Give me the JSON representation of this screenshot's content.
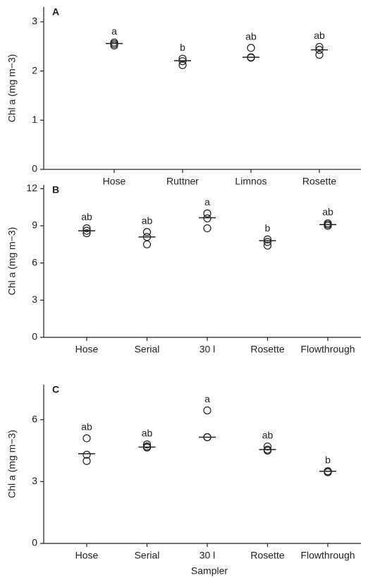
{
  "chart_data": [
    {
      "type": "dot",
      "panel_label": "A",
      "ylabel": "Chl a (mg m−3)",
      "categories": [
        "Hose",
        "Ruttner",
        "Limnos",
        "Rosette"
      ],
      "points": [
        [
          2.52,
          2.55,
          2.58
        ],
        [
          2.12,
          2.2,
          2.25
        ],
        [
          2.27,
          2.28,
          2.47
        ],
        [
          2.33,
          2.43,
          2.49
        ]
      ],
      "means": [
        2.56,
        2.21,
        2.28,
        2.43
      ],
      "letters": [
        "a",
        "b",
        "ab",
        "ab"
      ],
      "ylim": [
        0,
        3.3
      ],
      "yticks": [
        0,
        1,
        2,
        3
      ]
    },
    {
      "type": "dot",
      "panel_label": "B",
      "ylabel": "Chl a (mg m−3)",
      "categories": [
        "Hose",
        "Serial",
        "30 l",
        "Rosette",
        "Flowthrough"
      ],
      "points": [
        [
          8.4,
          8.6,
          8.8
        ],
        [
          7.5,
          8.1,
          8.5
        ],
        [
          8.8,
          9.6,
          10.0
        ],
        [
          7.4,
          7.7,
          7.9
        ],
        [
          9.0,
          9.1,
          9.2
        ]
      ],
      "means": [
        8.6,
        8.1,
        9.65,
        7.8,
        9.1
      ],
      "letters": [
        "ab",
        "ab",
        "a",
        "b",
        "ab"
      ],
      "ylim": [
        0,
        12.3
      ],
      "yticks": [
        0,
        3,
        6,
        9,
        12
      ]
    },
    {
      "type": "dot",
      "panel_label": "C",
      "ylabel": "Chl a (mg m−3)",
      "xlabel": "Sampler",
      "categories": [
        "Hose",
        "Serial",
        "30 l",
        "Rosette",
        "Flowthrough"
      ],
      "points": [
        [
          4.0,
          4.3,
          5.1
        ],
        [
          4.65,
          4.7,
          4.8
        ],
        [
          5.15,
          5.15,
          6.45
        ],
        [
          4.5,
          4.55,
          4.7
        ],
        [
          3.45,
          3.5,
          3.5
        ]
      ],
      "means": [
        4.35,
        4.67,
        5.15,
        4.55,
        3.5
      ],
      "letters": [
        "ab",
        "ab",
        "a",
        "ab",
        "b"
      ],
      "ylim": [
        0,
        7.7
      ],
      "yticks": [
        0,
        3,
        6
      ]
    }
  ]
}
